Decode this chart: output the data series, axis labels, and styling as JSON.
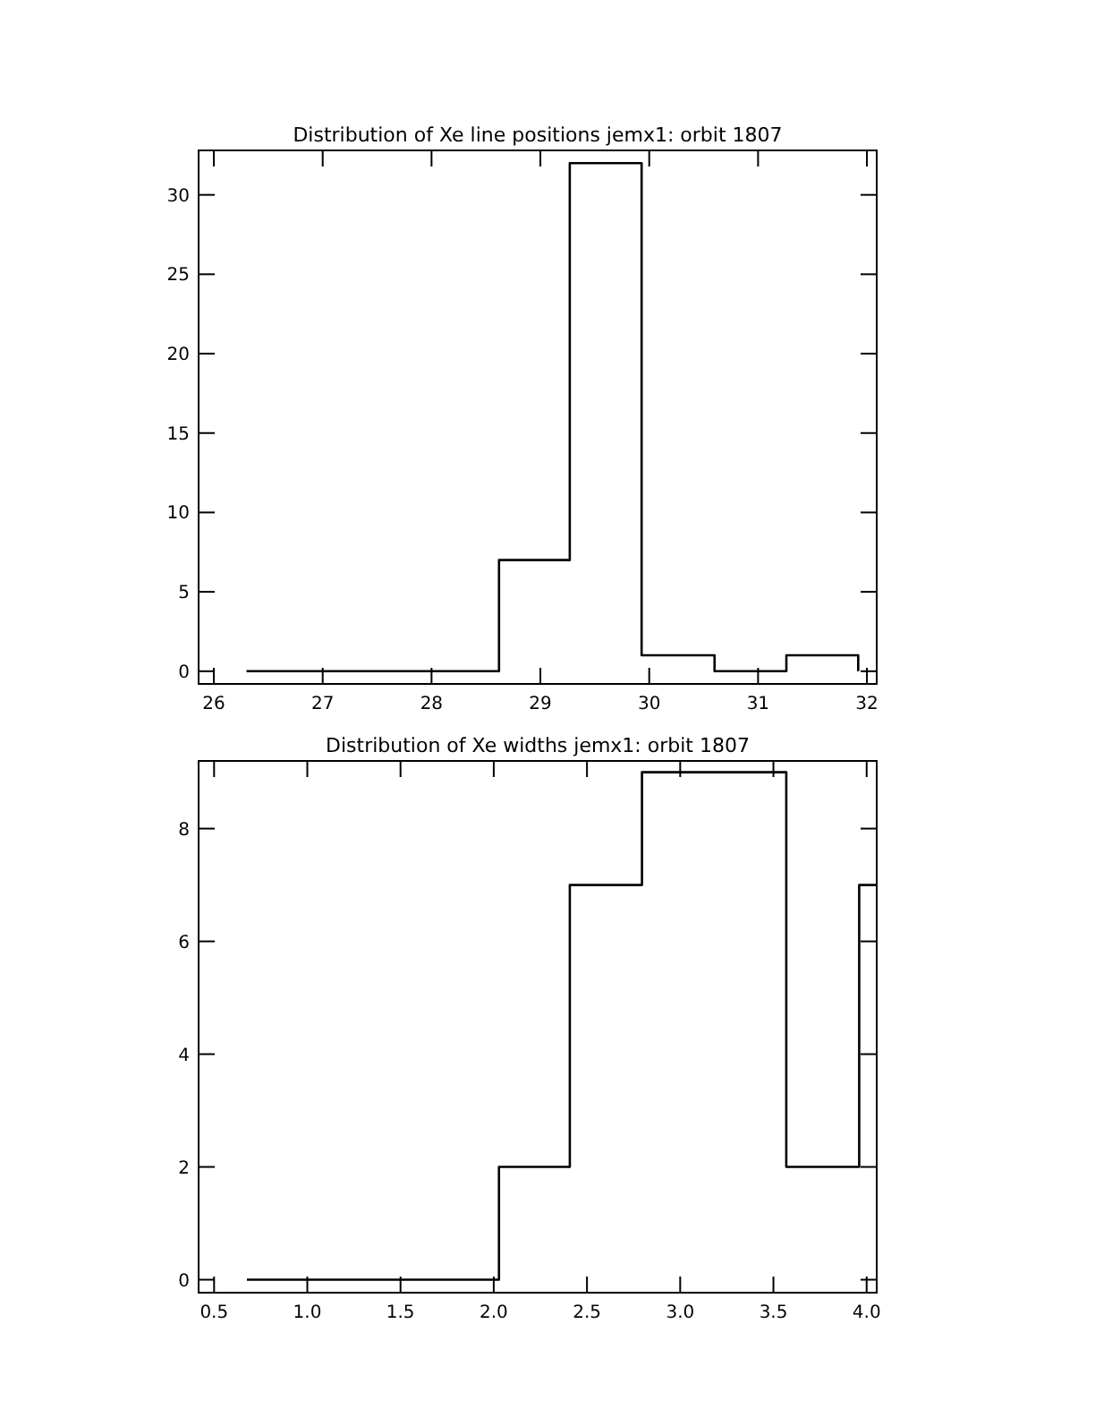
{
  "chart_data": [
    {
      "type": "step",
      "title": "Distribution of Xe line positions jemx1: orbit 1807",
      "x": [
        26.3,
        28.62,
        29.27,
        29.93,
        30.6,
        31.26,
        31.92
      ],
      "values": [
        0,
        7,
        32,
        1,
        0,
        1,
        0
      ],
      "color": "#000000",
      "xlim": [
        25.86,
        32.09
      ],
      "ylim": [
        -0.8,
        32.8
      ],
      "xticks": [
        26,
        27,
        28,
        29,
        30,
        31,
        32
      ],
      "yticks": [
        0,
        5,
        10,
        15,
        20,
        25,
        30
      ],
      "grid": false
    },
    {
      "type": "step",
      "title": "Distribution of Xe widths jemx1: orbit 1807",
      "x": [
        0.676,
        2.028,
        2.408,
        2.795,
        3.569,
        3.96,
        4.054
      ],
      "values": [
        0,
        2,
        7,
        9,
        2,
        7,
        7
      ],
      "color": "#000000",
      "xlim": [
        0.417,
        4.054
      ],
      "ylim": [
        -0.23,
        9.2
      ],
      "xticks": [
        {
          "value": 0.5,
          "label": "0.5"
        },
        {
          "value": 1,
          "label": "1.0"
        },
        {
          "value": 1.5,
          "label": "1.5"
        },
        {
          "value": 2,
          "label": "2.0"
        },
        {
          "value": 2.5,
          "label": "2.5"
        },
        {
          "value": 3,
          "label": "3.0"
        },
        {
          "value": 3.5,
          "label": "3.5"
        },
        {
          "value": 4,
          "label": "4.0"
        }
      ],
      "yticks": [
        0,
        2,
        4,
        6,
        8
      ],
      "grid": false
    }
  ]
}
